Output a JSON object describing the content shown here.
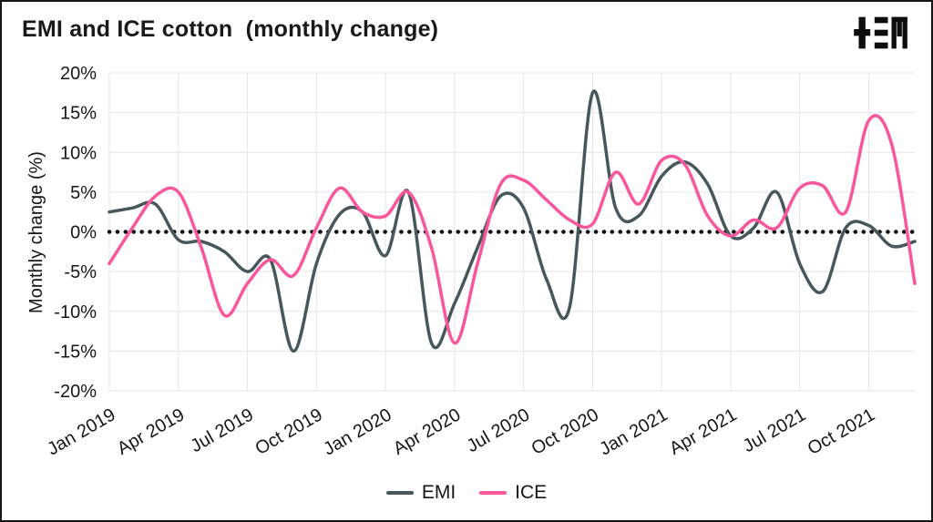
{
  "header": {
    "title": "EMI and ICE cotton  (monthly change)",
    "logo": "tem-logo"
  },
  "chart_data": {
    "type": "line",
    "title": "EMI and ICE cotton (monthly change)",
    "xlabel": "",
    "ylabel": "Monthly change (%)",
    "ylim": [
      -20,
      20
    ],
    "ytick_values": [
      20,
      15,
      10,
      5,
      0,
      -5,
      -10,
      -15,
      -20
    ],
    "ytick_labels": [
      "20%",
      "15%",
      "10%",
      "5%",
      "0%",
      "-5%",
      "-10%",
      "-15%",
      "-20%"
    ],
    "grid": true,
    "zero_line": "dotted-black",
    "legend_position": "bottom",
    "x_tick_every": 3,
    "x_tick_labels": [
      "Jan 2019",
      "Apr 2019",
      "Jul 2019",
      "Oct 2019",
      "Jan 2020",
      "Apr 2020",
      "Jul 2020",
      "Oct 2020",
      "Jan 2021",
      "Apr 2021",
      "Jul 2021",
      "Oct 2021"
    ],
    "categories": [
      "Jan 2019",
      "Feb 2019",
      "Mar 2019",
      "Apr 2019",
      "May 2019",
      "Jun 2019",
      "Jul 2019",
      "Aug 2019",
      "Sep 2019",
      "Oct 2019",
      "Nov 2019",
      "Dec 2019",
      "Jan 2020",
      "Feb 2020",
      "Mar 2020",
      "Apr 2020",
      "May 2020",
      "Jun 2020",
      "Jul 2020",
      "Aug 2020",
      "Sep 2020",
      "Oct 2020",
      "Nov 2020",
      "Dec 2020",
      "Jan 2021",
      "Feb 2021",
      "Mar 2021",
      "Apr 2021",
      "May 2021",
      "Jun 2021",
      "Jul 2021",
      "Aug 2021",
      "Sep 2021",
      "Oct 2021",
      "Nov 2021",
      "Dec 2021"
    ],
    "series": [
      {
        "name": "EMI",
        "color": "#47585d",
        "values": [
          2.5,
          3.0,
          3.5,
          -1.0,
          -1.2,
          -2.5,
          -5.0,
          -3.5,
          -15.0,
          -4.0,
          2.2,
          2.5,
          -3.0,
          5.0,
          -14.0,
          -9.0,
          -2.0,
          4.5,
          3.0,
          -6.0,
          -9.5,
          17.5,
          3.0,
          2.0,
          7.0,
          8.8,
          6.0,
          -0.5,
          0.5,
          5.0,
          -4.0,
          -7.5,
          0.5,
          0.8,
          -1.8,
          -1.2
        ]
      },
      {
        "name": "ICE",
        "color": "#f9569b",
        "values": [
          -4.0,
          0.5,
          4.5,
          5.0,
          -2.0,
          -10.5,
          -6.5,
          -3.5,
          -5.5,
          0.5,
          5.5,
          2.5,
          2.0,
          5.0,
          -2.0,
          -14.0,
          -4.0,
          6.0,
          6.5,
          4.0,
          1.5,
          1.0,
          7.5,
          3.5,
          9.0,
          8.5,
          2.0,
          -0.5,
          1.5,
          0.5,
          5.5,
          5.8,
          2.5,
          14.0,
          11.0,
          -6.5
        ]
      }
    ]
  },
  "legend": {
    "items": [
      {
        "label": "EMI",
        "color": "#47585d"
      },
      {
        "label": "ICE",
        "color": "#f9569b"
      }
    ]
  },
  "style": {
    "grid_color": "#e5e5e5",
    "zero_line_color": "#111111",
    "text_color": "#161616"
  }
}
